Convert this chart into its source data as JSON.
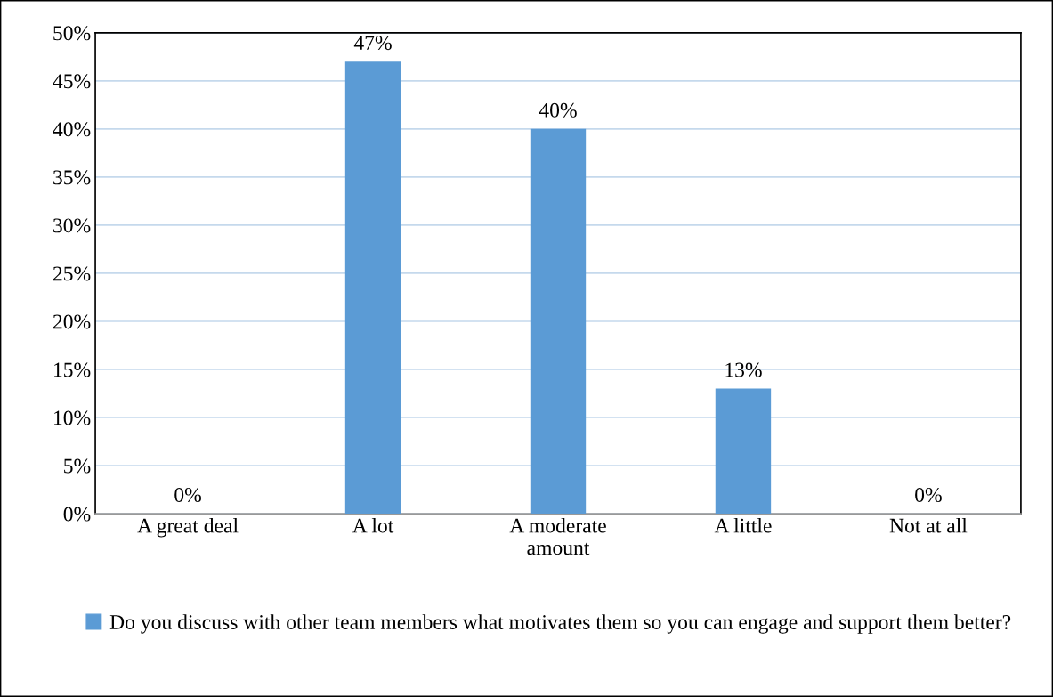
{
  "chart_data": {
    "type": "bar",
    "categories": [
      "A great deal",
      "A lot",
      "A moderate\namount",
      "A little",
      "Not at all"
    ],
    "series": [
      {
        "name": "Do you discuss with other team members what motivates them so you can engage and support them better?",
        "color": "#5b9bd5",
        "values": [
          0,
          47,
          40,
          13,
          0
        ],
        "value_labels": [
          "0%",
          "47%",
          "40%",
          "13%",
          "0%"
        ]
      }
    ],
    "ylim": [
      0,
      50
    ],
    "yticks": [
      {
        "value": 0,
        "label": "0%"
      },
      {
        "value": 5,
        "label": "5%"
      },
      {
        "value": 10,
        "label": "10%"
      },
      {
        "value": 15,
        "label": "15%"
      },
      {
        "value": 20,
        "label": "20%"
      },
      {
        "value": 25,
        "label": "25%"
      },
      {
        "value": 30,
        "label": "30%"
      },
      {
        "value": 35,
        "label": "35%"
      },
      {
        "value": 40,
        "label": "40%"
      },
      {
        "value": 45,
        "label": "45%"
      },
      {
        "value": 50,
        "label": "50%"
      }
    ],
    "grid": "y",
    "legend": "bottom"
  }
}
